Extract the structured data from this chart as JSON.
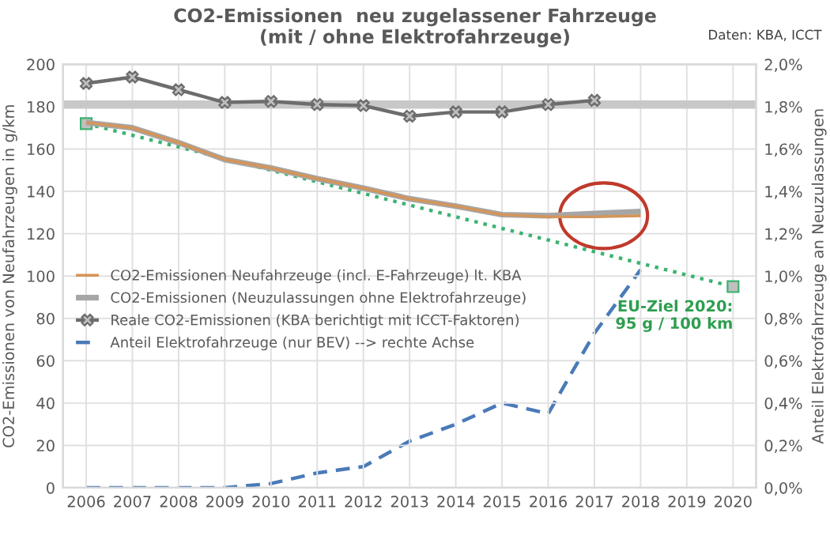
{
  "chart_data": {
    "type": "line",
    "title": "CO2-Emissionen  neu zugelassener Fahrzeuge\n(mit / ohne Elektrofahrzeuge)",
    "ylabel": "CO2-Emissionen von Neufahrzeugen in g/km",
    "y2label": "Anteil Elektrofahrzeuge an Neuzulassungen",
    "annotations": [
      "Daten: KBA, ICCT",
      {
        "text": "EU-Ziel 2020:\n95 g / 100 km",
        "x": 2020,
        "y": 95
      }
    ],
    "series": [
      {
        "name": "CO2-Emissionen Neufahrzeuge (incl. E-Fahrzeuge) lt. KBA",
        "color": "#d4955a",
        "x": [
          2006,
          2007,
          2008,
          2009,
          2010,
          2011,
          2012,
          2013,
          2014,
          2015,
          2016,
          2017,
          2018
        ],
        "values": [
          172.5,
          170,
          163,
          155,
          151,
          146,
          141.5,
          136.5,
          133,
          129,
          128,
          128,
          128.5
        ]
      },
      {
        "name": "CO2-Emissionen (Neuzulassungen ohne Elektrofahrzeuge)",
        "color": "#a6a6a6",
        "x": [
          2006,
          2007,
          2008,
          2009,
          2010,
          2011,
          2012,
          2013,
          2014,
          2015,
          2016,
          2017,
          2018
        ],
        "values": [
          172.5,
          170,
          163,
          155,
          151,
          146,
          141.5,
          136.5,
          133,
          129,
          128.5,
          129.5,
          130.5
        ]
      },
      {
        "name": "Reale CO2-Emissionen (KBA berichtigt mit ICCT-Faktoren)",
        "color": "#6d6d6d",
        "marker": "cross",
        "x": [
          2006,
          2007,
          2008,
          2009,
          2010,
          2011,
          2012,
          2013,
          2014,
          2015,
          2016,
          2017
        ],
        "values": [
          191,
          194,
          188,
          182,
          182.5,
          181,
          180.5,
          175.5,
          177.5,
          177.5,
          181,
          183
        ]
      },
      {
        "name": "Anteil Elektrofahrzeuge (nur BEV) --> rechte Achse",
        "color": "#4a7ab8",
        "line_style": "dashed",
        "axis": "y2",
        "x": [
          2006,
          2007,
          2008,
          2009,
          2010,
          2011,
          2012,
          2013,
          2014,
          2015,
          2016,
          2017,
          2018
        ],
        "values": [
          0,
          0,
          0,
          0,
          0.02,
          0.07,
          0.1,
          0.22,
          0.3,
          0.4,
          0.35,
          0.73,
          1.03
        ]
      },
      {
        "color": "#3cb371",
        "line_style": "dotted",
        "marker": "square",
        "x": [
          2006,
          2020
        ],
        "values": [
          172,
          95
        ]
      }
    ],
    "xlim": [
      2005.5,
      2020.5
    ],
    "xticks": [
      2006,
      2007,
      2008,
      2009,
      2010,
      2011,
      2012,
      2013,
      2014,
      2015,
      2016,
      2017,
      2018,
      2019,
      2020
    ],
    "ylim": [
      0,
      200
    ],
    "yticks": [
      0,
      20,
      40,
      60,
      80,
      100,
      120,
      140,
      160,
      180,
      200
    ],
    "y2lim": [
      0,
      2
    ],
    "y2ticks": [
      {
        "value": 0,
        "label": "0,0%"
      },
      {
        "value": 0.2,
        "label": "0,2%"
      },
      {
        "value": 0.4,
        "label": "0,4%"
      },
      {
        "value": 0.6,
        "label": "0,6%"
      },
      {
        "value": 0.8,
        "label": "0,8%"
      },
      {
        "value": 1.0,
        "label": "1,0%"
      },
      {
        "value": 1.2,
        "label": "1,2%"
      },
      {
        "value": 1.4,
        "label": "1,4%"
      },
      {
        "value": 1.6,
        "label": "1,6%"
      },
      {
        "value": 1.8,
        "label": "1,8%"
      },
      {
        "value": 2.0,
        "label": "2,0%"
      }
    ],
    "bands": [
      {
        "axis": "y",
        "from": 179,
        "to": 183,
        "color": "#c8c8c8"
      }
    ],
    "grid": true,
    "legend": "left"
  }
}
